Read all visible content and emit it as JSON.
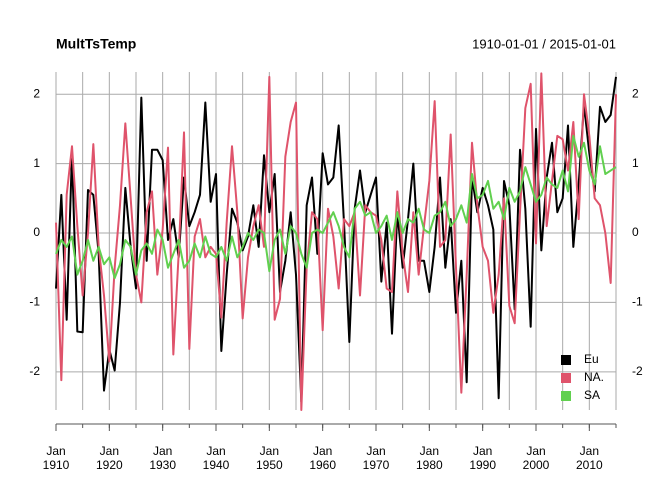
{
  "chart_data": {
    "type": "line",
    "title": "MultTsTemp",
    "subtitle": "1910-01-01 / 2015-01-01",
    "x": [
      1910,
      1911,
      1912,
      1913,
      1914,
      1915,
      1916,
      1917,
      1918,
      1919,
      1920,
      1921,
      1922,
      1923,
      1924,
      1925,
      1926,
      1927,
      1928,
      1929,
      1930,
      1931,
      1932,
      1933,
      1934,
      1935,
      1936,
      1937,
      1938,
      1939,
      1940,
      1941,
      1942,
      1943,
      1944,
      1945,
      1946,
      1947,
      1948,
      1949,
      1950,
      1951,
      1952,
      1953,
      1954,
      1955,
      1956,
      1957,
      1958,
      1959,
      1960,
      1961,
      1962,
      1963,
      1964,
      1965,
      1966,
      1967,
      1968,
      1969,
      1970,
      1971,
      1972,
      1973,
      1974,
      1975,
      1976,
      1977,
      1978,
      1979,
      1980,
      1981,
      1982,
      1983,
      1984,
      1985,
      1986,
      1987,
      1988,
      1989,
      1990,
      1991,
      1992,
      1993,
      1994,
      1995,
      1996,
      1997,
      1998,
      1999,
      2000,
      2001,
      2002,
      2003,
      2004,
      2005,
      2006,
      2007,
      2008,
      2009,
      2010,
      2011,
      2012,
      2013,
      2014,
      2015
    ],
    "series": [
      {
        "name": "Eu",
        "color": "#000000",
        "values": [
          -0.8,
          0.55,
          -1.25,
          1.15,
          -1.42,
          -1.43,
          0.62,
          0.55,
          -0.3,
          -2.27,
          -1.68,
          -1.98,
          -1.0,
          0.65,
          -0.2,
          -0.8,
          1.95,
          -0.4,
          1.2,
          1.2,
          1.05,
          -0.1,
          0.2,
          -0.35,
          0.8,
          0.1,
          0.3,
          0.55,
          1.88,
          0.45,
          0.85,
          -1.7,
          -0.6,
          0.35,
          0.15,
          -0.25,
          -0.05,
          0.4,
          -0.2,
          1.12,
          0.3,
          0.85,
          -0.85,
          -0.4,
          0.3,
          -0.6,
          -2.43,
          0.4,
          0.8,
          -0.3,
          1.15,
          0.7,
          0.8,
          1.55,
          0.15,
          -1.57,
          0.35,
          0.9,
          0.3,
          0.55,
          0.8,
          -0.7,
          0.15,
          -1.45,
          0.3,
          -0.5,
          0.2,
          1.0,
          -0.4,
          -0.4,
          -0.85,
          -0.2,
          0.8,
          -0.5,
          0.2,
          -1.15,
          -0.4,
          -2.15,
          0.8,
          0.3,
          0.65,
          0.4,
          0.05,
          -2.38,
          0.75,
          0.4,
          -1.1,
          1.2,
          0.35,
          -1.35,
          1.5,
          -0.25,
          0.8,
          1.3,
          0.3,
          0.5,
          1.55,
          -0.2,
          0.7,
          1.85,
          1.15,
          0.6,
          1.82,
          1.6,
          1.7,
          2.25
        ]
      },
      {
        "name": "NA.",
        "color": "#DF536B",
        "values": [
          0.15,
          -2.12,
          0.55,
          1.25,
          0.1,
          -0.9,
          0.0,
          1.28,
          -0.2,
          -0.9,
          -1.85,
          -0.5,
          0.4,
          1.58,
          0.5,
          -0.6,
          -1.0,
          0.3,
          0.6,
          -0.6,
          0.05,
          1.23,
          -1.75,
          -0.3,
          1.45,
          -1.67,
          -0.05,
          0.2,
          -0.35,
          -0.2,
          -0.3,
          -1.22,
          0.15,
          1.25,
          0.3,
          -1.23,
          -0.35,
          0.1,
          0.4,
          -0.2,
          2.25,
          -1.25,
          -0.95,
          1.1,
          1.6,
          1.88,
          -2.55,
          -0.5,
          0.3,
          0.2,
          -1.4,
          0.35,
          -0.05,
          -0.8,
          0.2,
          0.1,
          0.3,
          -0.9,
          0.4,
          0.3,
          0.25,
          -0.1,
          -0.8,
          -0.85,
          0.6,
          -0.3,
          -0.85,
          0.3,
          -0.6,
          0.1,
          0.75,
          1.9,
          -0.2,
          -0.1,
          1.42,
          -0.5,
          -2.3,
          -0.6,
          1.3,
          0.4,
          -0.2,
          -0.4,
          -1.15,
          -0.6,
          0.5,
          -1.05,
          -1.3,
          0.3,
          1.8,
          2.15,
          -0.15,
          2.3,
          0.1,
          0.75,
          1.4,
          1.35,
          0.9,
          1.6,
          0.2,
          2.0,
          1.4,
          0.5,
          0.4,
          0.0,
          -0.72,
          2.0
        ]
      },
      {
        "name": "SA",
        "color": "#61D04F",
        "values": [
          -0.3,
          -0.1,
          -0.2,
          -0.05,
          -0.6,
          -0.4,
          -0.1,
          -0.4,
          -0.2,
          -0.45,
          -0.35,
          -0.65,
          -0.45,
          -0.1,
          -0.2,
          -0.6,
          -0.25,
          -0.15,
          -0.3,
          0.05,
          -0.1,
          -0.5,
          -0.3,
          -0.1,
          -0.5,
          -0.4,
          -0.15,
          -0.35,
          -0.05,
          -0.3,
          -0.35,
          -0.2,
          -0.4,
          -0.05,
          -0.35,
          -0.2,
          0.0,
          -0.1,
          0.05,
          0.0,
          -0.55,
          -0.1,
          0.05,
          -0.3,
          0.1,
          0.0,
          -0.3,
          -0.5,
          0.0,
          0.05,
          0.0,
          0.15,
          0.3,
          0.1,
          -0.2,
          -0.35,
          0.35,
          0.45,
          0.25,
          0.3,
          0.0,
          0.1,
          0.25,
          -0.1,
          0.3,
          0.0,
          0.2,
          0.15,
          0.35,
          0.05,
          0.0,
          0.25,
          0.3,
          0.45,
          0.1,
          0.2,
          0.4,
          0.15,
          0.85,
          0.5,
          0.55,
          0.75,
          0.35,
          0.45,
          0.2,
          0.65,
          0.45,
          0.6,
          0.95,
          0.7,
          0.45,
          0.55,
          0.8,
          0.7,
          0.65,
          0.9,
          0.6,
          1.4,
          1.1,
          1.3,
          0.9,
          0.7,
          1.25,
          0.85,
          0.9,
          0.95
        ]
      }
    ],
    "xlim": [
      1910,
      2015
    ],
    "xticks": [
      {
        "value": 1910,
        "label": "Jan 1910"
      },
      {
        "value": 1920,
        "label": "Jan 1920"
      },
      {
        "value": 1930,
        "label": "Jan 1930"
      },
      {
        "value": 1940,
        "label": "Jan 1940"
      },
      {
        "value": 1950,
        "label": "Jan 1950"
      },
      {
        "value": 1960,
        "label": "Jan 1960"
      },
      {
        "value": 1970,
        "label": "Jan 1970"
      },
      {
        "value": 1980,
        "label": "Jan 1980"
      },
      {
        "value": 1990,
        "label": "Jan 1990"
      },
      {
        "value": 2000,
        "label": "Jan 2000"
      },
      {
        "value": 2010,
        "label": "Jan 2010"
      }
    ],
    "xgrid": [
      1910,
      1915,
      1920,
      1925,
      1930,
      1935,
      1940,
      1945,
      1950,
      1955,
      1960,
      1965,
      1970,
      1975,
      1980,
      1985,
      1990,
      1995,
      2000,
      2005,
      2010,
      2015
    ],
    "ylim": [
      -2.55,
      2.32
    ],
    "yticks": [
      -2,
      -1,
      0,
      1,
      2
    ],
    "grid": true,
    "legend": "bottomright"
  }
}
